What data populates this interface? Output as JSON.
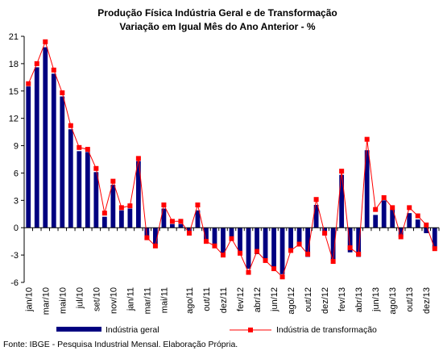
{
  "chart_data": {
    "type": "bar",
    "title": "Produção Física Indústria Geral e de Transformação",
    "subtitle": "Variação em Igual Mês do Ano Anterior - %",
    "ylim": [
      -6,
      21
    ],
    "yticks": [
      "21",
      "18",
      "15",
      "12",
      "9",
      "6",
      "3",
      "0",
      "-3",
      "-6"
    ],
    "ytick_values": [
      21,
      18,
      15,
      12,
      9,
      6,
      3,
      0,
      -3,
      -6
    ],
    "grid": false,
    "legend_position": "bottom",
    "categories": [
      "jan/10",
      "fev/10",
      "mar/10",
      "abr/10",
      "mai/10",
      "jun/10",
      "jul/10",
      "ago/10",
      "set/10",
      "out/10",
      "nov/10",
      "dez/10",
      "jan/11",
      "fev/11",
      "mar/11",
      "abr/11",
      "mai/11",
      "jun/11",
      "jul/11",
      "ago/11",
      "set/11",
      "out/11",
      "nov/11",
      "dez/11",
      "jan/12",
      "fev/12",
      "mar/12",
      "abr/12",
      "mai/12",
      "jun/12",
      "jul/12",
      "ago/12",
      "set/12",
      "out/12",
      "nov/12",
      "dez/12",
      "jan/13",
      "fev/13",
      "mar/13",
      "abr/13",
      "mai/13",
      "jun/13",
      "jul/13",
      "ago/13",
      "set/13",
      "out/13",
      "nov/13",
      "dez/13",
      "jan/14"
    ],
    "xtick_labels": [
      "jan/10",
      "mar/10",
      "mai/10",
      "jul/10",
      "set/10",
      "nov/10",
      "jan/11",
      "mar/11",
      "mai/11",
      "ago/11",
      "out/11",
      "dez/11",
      "fev/12",
      "abr/12",
      "jun/12",
      "ago/12",
      "out/12",
      "dez/12",
      "fev/13",
      "abr/13",
      "jun/13",
      "ago/13",
      "out/13",
      "dez/13"
    ],
    "xtick_indices": [
      0,
      2,
      4,
      6,
      8,
      10,
      12,
      14,
      16,
      19,
      21,
      23,
      25,
      27,
      29,
      31,
      33,
      35,
      37,
      39,
      41,
      43,
      45,
      47
    ],
    "series": [
      {
        "name": "Indústria geral",
        "type": "bar",
        "color": "#000080",
        "values": [
          15.5,
          17.6,
          19.8,
          16.9,
          14.4,
          10.8,
          8.4,
          8.3,
          6.1,
          1.2,
          4.7,
          1.9,
          2.1,
          7.3,
          -1.3,
          -1.9,
          2.1,
          0.4,
          0.4,
          -0.4,
          1.9,
          -1.7,
          -2.1,
          -2.9,
          -1.4,
          -2.7,
          -4.5,
          -2.9,
          -3.6,
          -4.3,
          -5.1,
          -2.6,
          -1.8,
          -3.2,
          2.5,
          -0.8,
          -3.6,
          5.8,
          -2.7,
          -3.2,
          8.5,
          1.4,
          3.0,
          2.0,
          -1.0,
          1.6,
          0.9,
          -0.6,
          -2.3
        ]
      },
      {
        "name": "Indústria de transformação",
        "type": "line",
        "color": "#ff0000",
        "values": [
          15.8,
          18.0,
          20.4,
          17.3,
          14.8,
          11.2,
          8.8,
          8.6,
          6.5,
          1.6,
          5.1,
          2.2,
          2.4,
          7.6,
          -1.1,
          -2.0,
          2.5,
          0.7,
          0.7,
          -0.6,
          2.5,
          -1.5,
          -2.0,
          -3.0,
          -1.2,
          -2.8,
          -4.9,
          -2.6,
          -3.6,
          -4.5,
          -5.4,
          -2.5,
          -1.8,
          -2.9,
          3.1,
          -0.6,
          -3.7,
          6.2,
          -2.2,
          -2.9,
          9.7,
          2.0,
          3.3,
          2.2,
          -1.0,
          2.2,
          1.3,
          0.3,
          -2.3
        ]
      }
    ]
  },
  "source": "Fonte: IBGE - Pesquisa Industrial Mensal. Elaboração Própria."
}
